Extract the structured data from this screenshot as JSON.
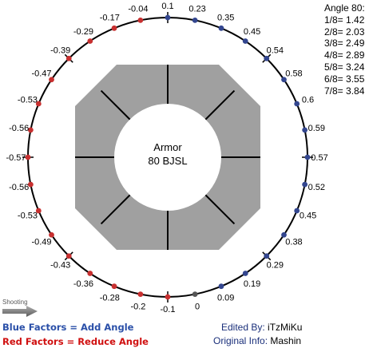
{
  "center": {
    "line1": "Armor",
    "line2": "80 BJSL"
  },
  "angle_table": {
    "title": "Angle 80:",
    "rows": [
      "1/8= 1.42",
      "2/8= 2.03",
      "3/8= 2.49",
      "4/8= 2.89",
      "5/8= 3.24",
      "6/8= 3.55",
      "7/8= 3.84"
    ]
  },
  "shooting": {
    "label": "Shooting"
  },
  "legend": {
    "blue": "Blue Factors = Add Angle",
    "red": "Red Factors = Reduce Angle"
  },
  "credits": {
    "edited_key": "Edited By:",
    "edited_val": "iTzMiKu",
    "original_key": "Original Info:",
    "original_val": "Mashin"
  },
  "colors": {
    "blue": "#33468f",
    "red": "#c83030",
    "gray": "#555555",
    "ring": "#a0a0a0"
  },
  "factors": [
    {
      "label": "0.1",
      "color": "blue"
    },
    {
      "label": "0.23",
      "color": "blue"
    },
    {
      "label": "0.35",
      "color": "blue"
    },
    {
      "label": "0.45",
      "color": "blue"
    },
    {
      "label": "0.54",
      "color": "blue"
    },
    {
      "label": "0.58",
      "color": "blue"
    },
    {
      "label": "0.6",
      "color": "blue"
    },
    {
      "label": "0.59",
      "color": "blue"
    },
    {
      "label": "0.57",
      "color": "blue"
    },
    {
      "label": "0.52",
      "color": "blue"
    },
    {
      "label": "0.45",
      "color": "blue"
    },
    {
      "label": "0.38",
      "color": "blue"
    },
    {
      "label": "0.29",
      "color": "blue"
    },
    {
      "label": "0.19",
      "color": "blue"
    },
    {
      "label": "0.09",
      "color": "blue"
    },
    {
      "label": "0",
      "color": "gray"
    },
    {
      "label": "-0.1",
      "color": "red"
    },
    {
      "label": "-0.2",
      "color": "red"
    },
    {
      "label": "-0.28",
      "color": "red"
    },
    {
      "label": "-0.36",
      "color": "red"
    },
    {
      "label": "-0.43",
      "color": "red"
    },
    {
      "label": "-0.49",
      "color": "red"
    },
    {
      "label": "-0.53",
      "color": "red"
    },
    {
      "label": "-0.56",
      "color": "red"
    },
    {
      "label": "-0.57",
      "color": "red"
    },
    {
      "label": "-0.56",
      "color": "red"
    },
    {
      "label": "-0.53",
      "color": "red"
    },
    {
      "label": "-0.47",
      "color": "red"
    },
    {
      "label": "-0.39",
      "color": "red"
    },
    {
      "label": "-0.29",
      "color": "red"
    },
    {
      "label": "-0.17",
      "color": "red"
    },
    {
      "label": "-0.04",
      "color": "red"
    }
  ]
}
